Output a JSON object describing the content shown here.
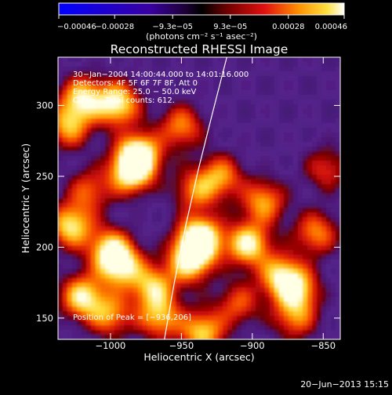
{
  "chart_data": {
    "type": "heatmap",
    "title": "Reconstructed RHESSI Image",
    "xlabel": "Heliocentric X (arcsec)",
    "ylabel": "Heliocentric Y (arcsec)",
    "xlim": [
      -1037,
      -838
    ],
    "ylim": [
      135,
      334
    ],
    "x_ticks": [
      {
        "value": -1000,
        "label": "−1000"
      },
      {
        "value": -950,
        "label": "−950"
      },
      {
        "value": -900,
        "label": "−900"
      },
      {
        "value": -850,
        "label": "−850"
      }
    ],
    "y_ticks": [
      {
        "value": 150,
        "label": "150"
      },
      {
        "value": 200,
        "label": "200"
      },
      {
        "value": 250,
        "label": "250"
      },
      {
        "value": 300,
        "label": "300"
      }
    ],
    "colorbar": {
      "range": [
        -0.00046,
        0.00046
      ],
      "ticks": [
        {
          "value": -0.00046,
          "label": "−0.00046"
        },
        {
          "value": -0.00028,
          "label": "−0.00028"
        },
        {
          "value": -9.3e-05,
          "label": "−9.3e−05"
        },
        {
          "value": 9.3e-05,
          "label": "9.3e−05"
        },
        {
          "value": 0.00028,
          "label": "0.00028"
        },
        {
          "value": 0.00046,
          "label": "0.00046"
        }
      ],
      "unit_label": "(photons cm⁻² s⁻¹ asec⁻²)"
    },
    "annotations": [
      "30−Jan−2004 14:00:44.000 to 14:01:16.000",
      "Detectors: 4F 5F 6F 7F 8F, Att 0",
      "Energy Range: 25.0 − 50.0 keV",
      "Clean    Total counts: 612."
    ],
    "peak_label": "Position of Peak = [−936,206]",
    "peak": {
      "x": -936,
      "y": 206
    },
    "limb_curve": [
      [
        -962,
        135
      ],
      [
        -955,
        175
      ],
      [
        -947,
        215
      ],
      [
        -938,
        255
      ],
      [
        -928,
        295
      ],
      [
        -918,
        334
      ]
    ],
    "sources": [
      {
        "x": -937,
        "y": 206,
        "amp": 1.0
      },
      {
        "x": -944,
        "y": 190,
        "amp": 0.75
      },
      {
        "x": -980,
        "y": 265,
        "amp": 0.9
      },
      {
        "x": -986,
        "y": 252,
        "amp": 0.7
      },
      {
        "x": -995,
        "y": 301,
        "amp": 0.8
      },
      {
        "x": -1020,
        "y": 305,
        "amp": 0.7
      },
      {
        "x": -1030,
        "y": 285,
        "amp": 0.6
      },
      {
        "x": -993,
        "y": 187,
        "amp": 0.75
      },
      {
        "x": -1001,
        "y": 199,
        "amp": 0.6
      },
      {
        "x": -1028,
        "y": 215,
        "amp": 0.75
      },
      {
        "x": -1015,
        "y": 240,
        "amp": 0.45
      },
      {
        "x": -1020,
        "y": 165,
        "amp": 0.75
      },
      {
        "x": -1000,
        "y": 152,
        "amp": 0.55
      },
      {
        "x": -970,
        "y": 172,
        "amp": 0.65
      },
      {
        "x": -965,
        "y": 150,
        "amp": 0.6
      },
      {
        "x": -950,
        "y": 285,
        "amp": 0.55
      },
      {
        "x": -940,
        "y": 240,
        "amp": 0.5
      },
      {
        "x": -922,
        "y": 250,
        "amp": 0.55
      },
      {
        "x": -903,
        "y": 202,
        "amp": 0.8
      },
      {
        "x": -892,
        "y": 232,
        "amp": 0.6
      },
      {
        "x": -880,
        "y": 180,
        "amp": 0.65
      },
      {
        "x": -868,
        "y": 170,
        "amp": 0.6
      },
      {
        "x": -855,
        "y": 210,
        "amp": 0.55
      },
      {
        "x": -870,
        "y": 150,
        "amp": 0.5
      },
      {
        "x": -910,
        "y": 160,
        "amp": 0.45
      },
      {
        "x": -935,
        "y": 140,
        "amp": 0.7
      },
      {
        "x": -848,
        "y": 255,
        "amp": 0.4
      }
    ]
  },
  "timestamp": "20−Jun−2013 15:15"
}
